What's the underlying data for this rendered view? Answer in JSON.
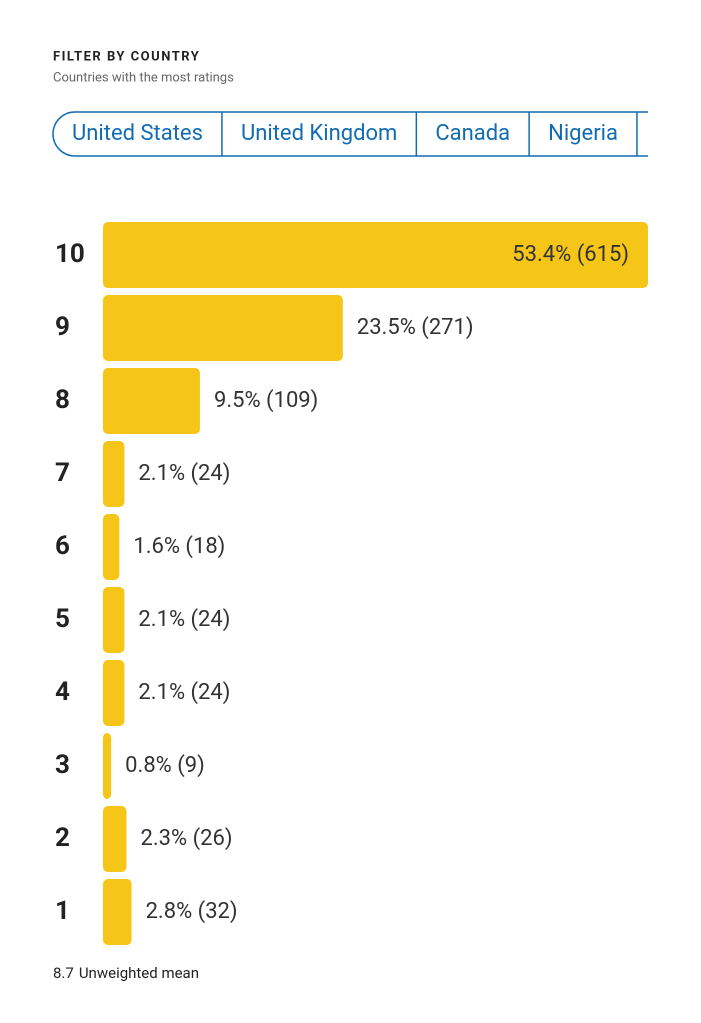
{
  "header": {
    "title": "FILTER BY COUNTRY",
    "subtitle": "Countries with the most ratings"
  },
  "tabs": [
    "United States",
    "United Kingdom",
    "Canada",
    "Nigeria"
  ],
  "chart_data": {
    "type": "hbar",
    "color": "#f5c518",
    "categories": [
      "10",
      "9",
      "8",
      "7",
      "6",
      "5",
      "4",
      "3",
      "2",
      "1"
    ],
    "values": [
      53.4,
      23.5,
      9.5,
      2.1,
      1.6,
      2.1,
      2.1,
      0.8,
      2.3,
      2.8
    ],
    "value_labels": [
      "53.4% (615)",
      "23.5% (271)",
      "9.5% (109)",
      "2.1% (24)",
      "1.6% (18)",
      "2.1% (24)",
      "2.1% (24)",
      "0.8% (9)",
      "2.3% (26)",
      "2.8% (32)"
    ]
  },
  "footer": {
    "value": 8.7,
    "label": "Unweighted mean"
  }
}
